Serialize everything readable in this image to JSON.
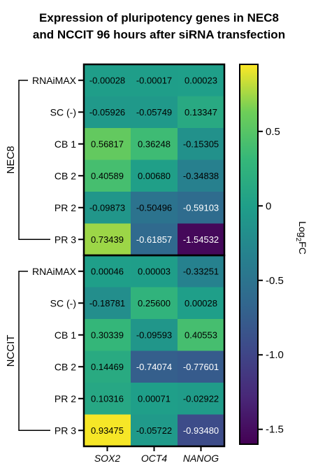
{
  "chart_data": {
    "type": "heatmap",
    "title": "Expression of pluripotency genes in NEC8 and NCCIT 96 hours after siRNA transfection",
    "title_lines": [
      "Expression of pluripotency genes in NEC8",
      "and NCCIT 96 hours after siRNA transfection"
    ],
    "columns": [
      "SOX2",
      "OCT4",
      "NANOG"
    ],
    "groups": [
      {
        "name": "NEC8",
        "rows": [
          "RNAiMAX",
          "SC (-)",
          "CB 1",
          "CB 2",
          "PR 2",
          "PR 3"
        ],
        "values": [
          [
            -0.00028,
            -0.00017,
            0.00023
          ],
          [
            -0.05926,
            -0.05749,
            0.13347
          ],
          [
            0.56817,
            0.36248,
            -0.15305
          ],
          [
            0.40589,
            0.0068,
            -0.34838
          ],
          [
            -0.09873,
            -0.50496,
            -0.59103
          ],
          [
            0.73439,
            -0.61857,
            -1.54532
          ]
        ],
        "labels": [
          [
            "-0.00028",
            "-0.00017",
            "0.00023"
          ],
          [
            "-0.05926",
            "-0.05749",
            "0.13347"
          ],
          [
            "0.56817",
            "0.36248",
            "-0.15305"
          ],
          [
            "0.40589",
            "0.00680",
            "-0.34838"
          ],
          [
            "-0.09873",
            "-0.50496",
            "-0.59103"
          ],
          [
            "0.73439",
            "-0.61857",
            "-1.54532"
          ]
        ]
      },
      {
        "name": "NCCIT",
        "rows": [
          "RNAiMAX",
          "SC (-)",
          "CB 1",
          "CB 2",
          "PR 2",
          "PR 3"
        ],
        "values": [
          [
            0.00046,
            3e-05,
            -0.33251
          ],
          [
            -0.18781,
            0.256,
            0.00028
          ],
          [
            0.30339,
            -0.09593,
            0.40553
          ],
          [
            0.14469,
            -0.74074,
            -0.77601
          ],
          [
            0.10316,
            0.00071,
            -0.02922
          ],
          [
            0.93475,
            -0.05722,
            -0.9348
          ]
        ],
        "labels": [
          [
            "0.00046",
            "0.00003",
            "-0.33251"
          ],
          [
            "-0.18781",
            "0.25600",
            "0.00028"
          ],
          [
            "0.30339",
            "-0.09593",
            "0.40553"
          ],
          [
            "0.14469",
            "-0.74074",
            "-0.77601"
          ],
          [
            "0.10316",
            "0.00071",
            "-0.02922"
          ],
          [
            "0.93475",
            "-0.05722",
            "-0.93480"
          ]
        ]
      }
    ],
    "colorbar": {
      "label_main": "Log",
      "label_sub": "2",
      "label_tail": "FC",
      "range": [
        -1.6,
        0.95
      ],
      "ticks": [
        0.5,
        0,
        -0.5,
        -1.0,
        -1.5
      ],
      "tick_labels": [
        "0.5",
        "0",
        "-0.5",
        "-1.0",
        "-1.5"
      ],
      "colormap": "viridis"
    }
  }
}
